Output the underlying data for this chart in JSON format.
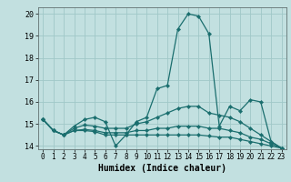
{
  "title": "",
  "xlabel": "Humidex (Indice chaleur)",
  "background_color": "#c2e0e0",
  "grid_color": "#a0c8c8",
  "line_color": "#1a6e6e",
  "xlim": [
    -0.5,
    23.5
  ],
  "ylim": [
    13.85,
    20.3
  ],
  "yticks": [
    14,
    15,
    16,
    17,
    18,
    19,
    20
  ],
  "xticks": [
    0,
    1,
    2,
    3,
    4,
    5,
    6,
    7,
    8,
    9,
    10,
    11,
    12,
    13,
    14,
    15,
    16,
    17,
    18,
    19,
    20,
    21,
    22,
    23
  ],
  "series": [
    [
      15.2,
      14.7,
      14.5,
      14.9,
      15.2,
      15.3,
      15.1,
      14.0,
      14.5,
      15.1,
      15.3,
      16.6,
      16.75,
      19.3,
      20.0,
      19.9,
      19.1,
      14.9,
      15.8,
      15.6,
      16.1,
      16.0,
      14.2,
      13.9
    ],
    [
      15.2,
      14.7,
      14.5,
      14.8,
      14.95,
      14.9,
      14.8,
      14.8,
      14.8,
      15.0,
      15.1,
      15.3,
      15.5,
      15.7,
      15.8,
      15.8,
      15.5,
      15.4,
      15.3,
      15.1,
      14.8,
      14.5,
      14.2,
      13.9
    ],
    [
      15.2,
      14.7,
      14.5,
      14.7,
      14.75,
      14.7,
      14.6,
      14.6,
      14.6,
      14.7,
      14.7,
      14.8,
      14.8,
      14.9,
      14.9,
      14.9,
      14.8,
      14.8,
      14.7,
      14.6,
      14.4,
      14.3,
      14.1,
      13.9
    ],
    [
      15.2,
      14.7,
      14.5,
      14.7,
      14.7,
      14.65,
      14.5,
      14.5,
      14.5,
      14.5,
      14.5,
      14.5,
      14.5,
      14.5,
      14.5,
      14.5,
      14.45,
      14.4,
      14.4,
      14.3,
      14.2,
      14.1,
      14.0,
      13.9
    ]
  ]
}
